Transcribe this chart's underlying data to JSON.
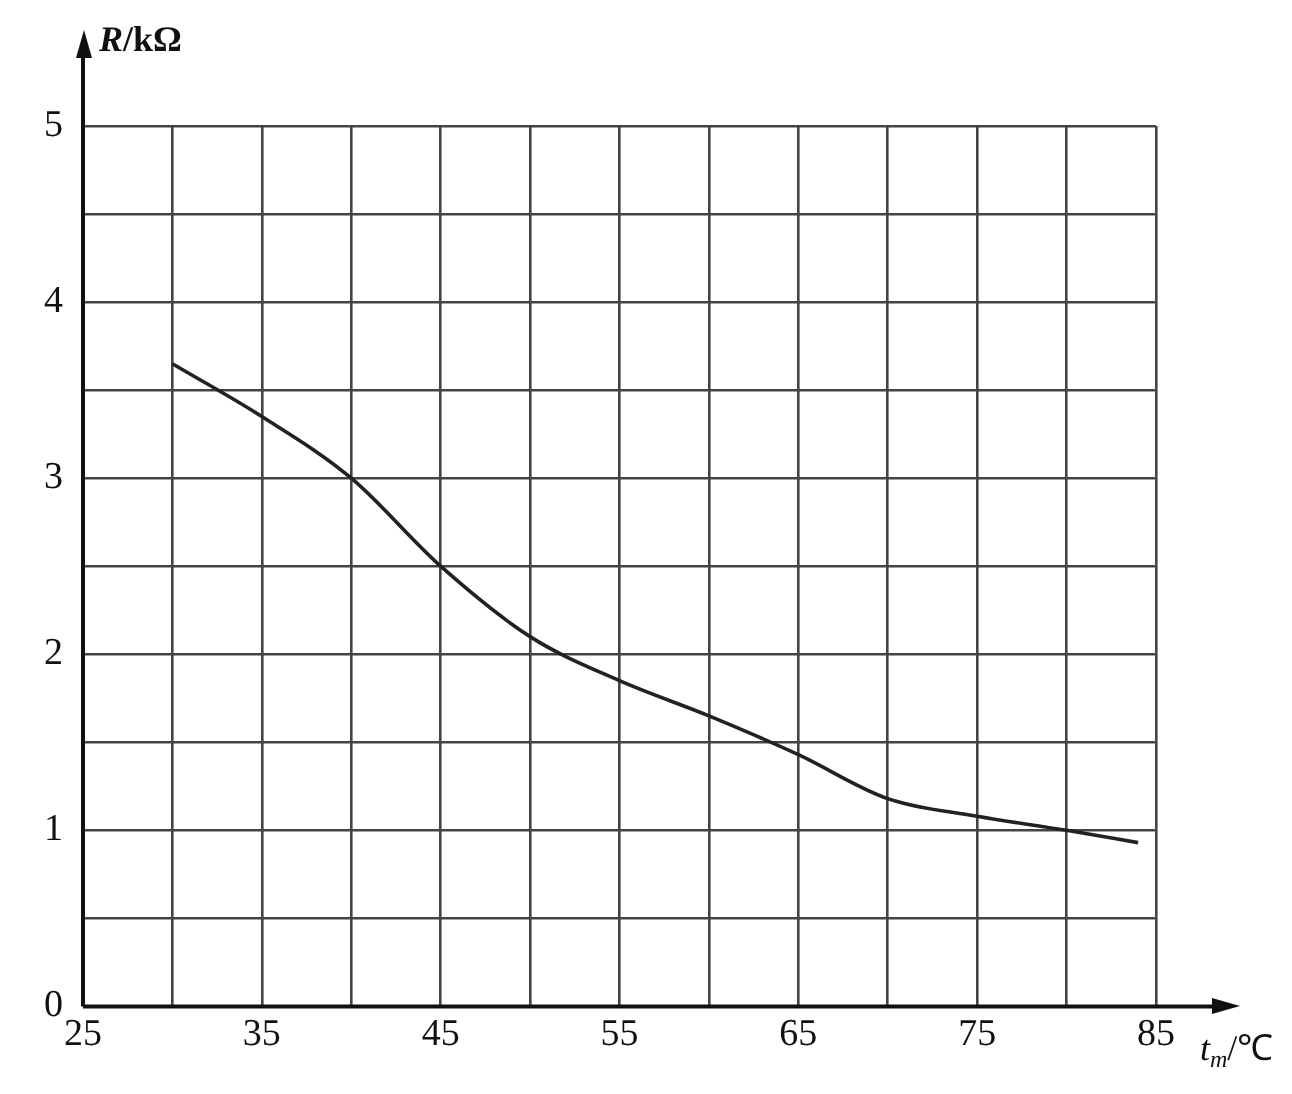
{
  "chart_data": {
    "type": "line",
    "xlabel": "t$_{m}$/℃",
    "ylabel": "R/kΩ",
    "xlim": [
      25,
      85
    ],
    "ylim": [
      0,
      5
    ],
    "xticks": [
      25,
      {
        "value": 30,
        "label": null
      },
      35,
      {
        "value": 40,
        "label": null
      },
      45,
      {
        "value": 50,
        "label": null
      },
      55,
      {
        "value": 60,
        "label": null
      },
      65,
      {
        "value": 70,
        "label": null
      },
      75,
      {
        "value": 80,
        "label": null
      },
      85
    ],
    "yticks": [
      0,
      {
        "value": 0.5,
        "label": null
      },
      1,
      {
        "value": 1.5,
        "label": null
      },
      2,
      {
        "value": 2.5,
        "label": null
      },
      3,
      {
        "value": 3.5,
        "label": null
      },
      4,
      {
        "value": 4.5,
        "label": null
      },
      5
    ],
    "grid": true,
    "legend": false,
    "marker": "none",
    "line_style": "solid",
    "series": [
      {
        "color": "#222222",
        "x": [
          30,
          35,
          40,
          45,
          50,
          55,
          60,
          65,
          70,
          75,
          80,
          84
        ],
        "values": [
          3.65,
          3.35,
          3.0,
          2.5,
          2.1,
          1.85,
          1.65,
          1.43,
          1.18,
          1.08,
          1.0,
          0.93
        ]
      }
    ]
  }
}
